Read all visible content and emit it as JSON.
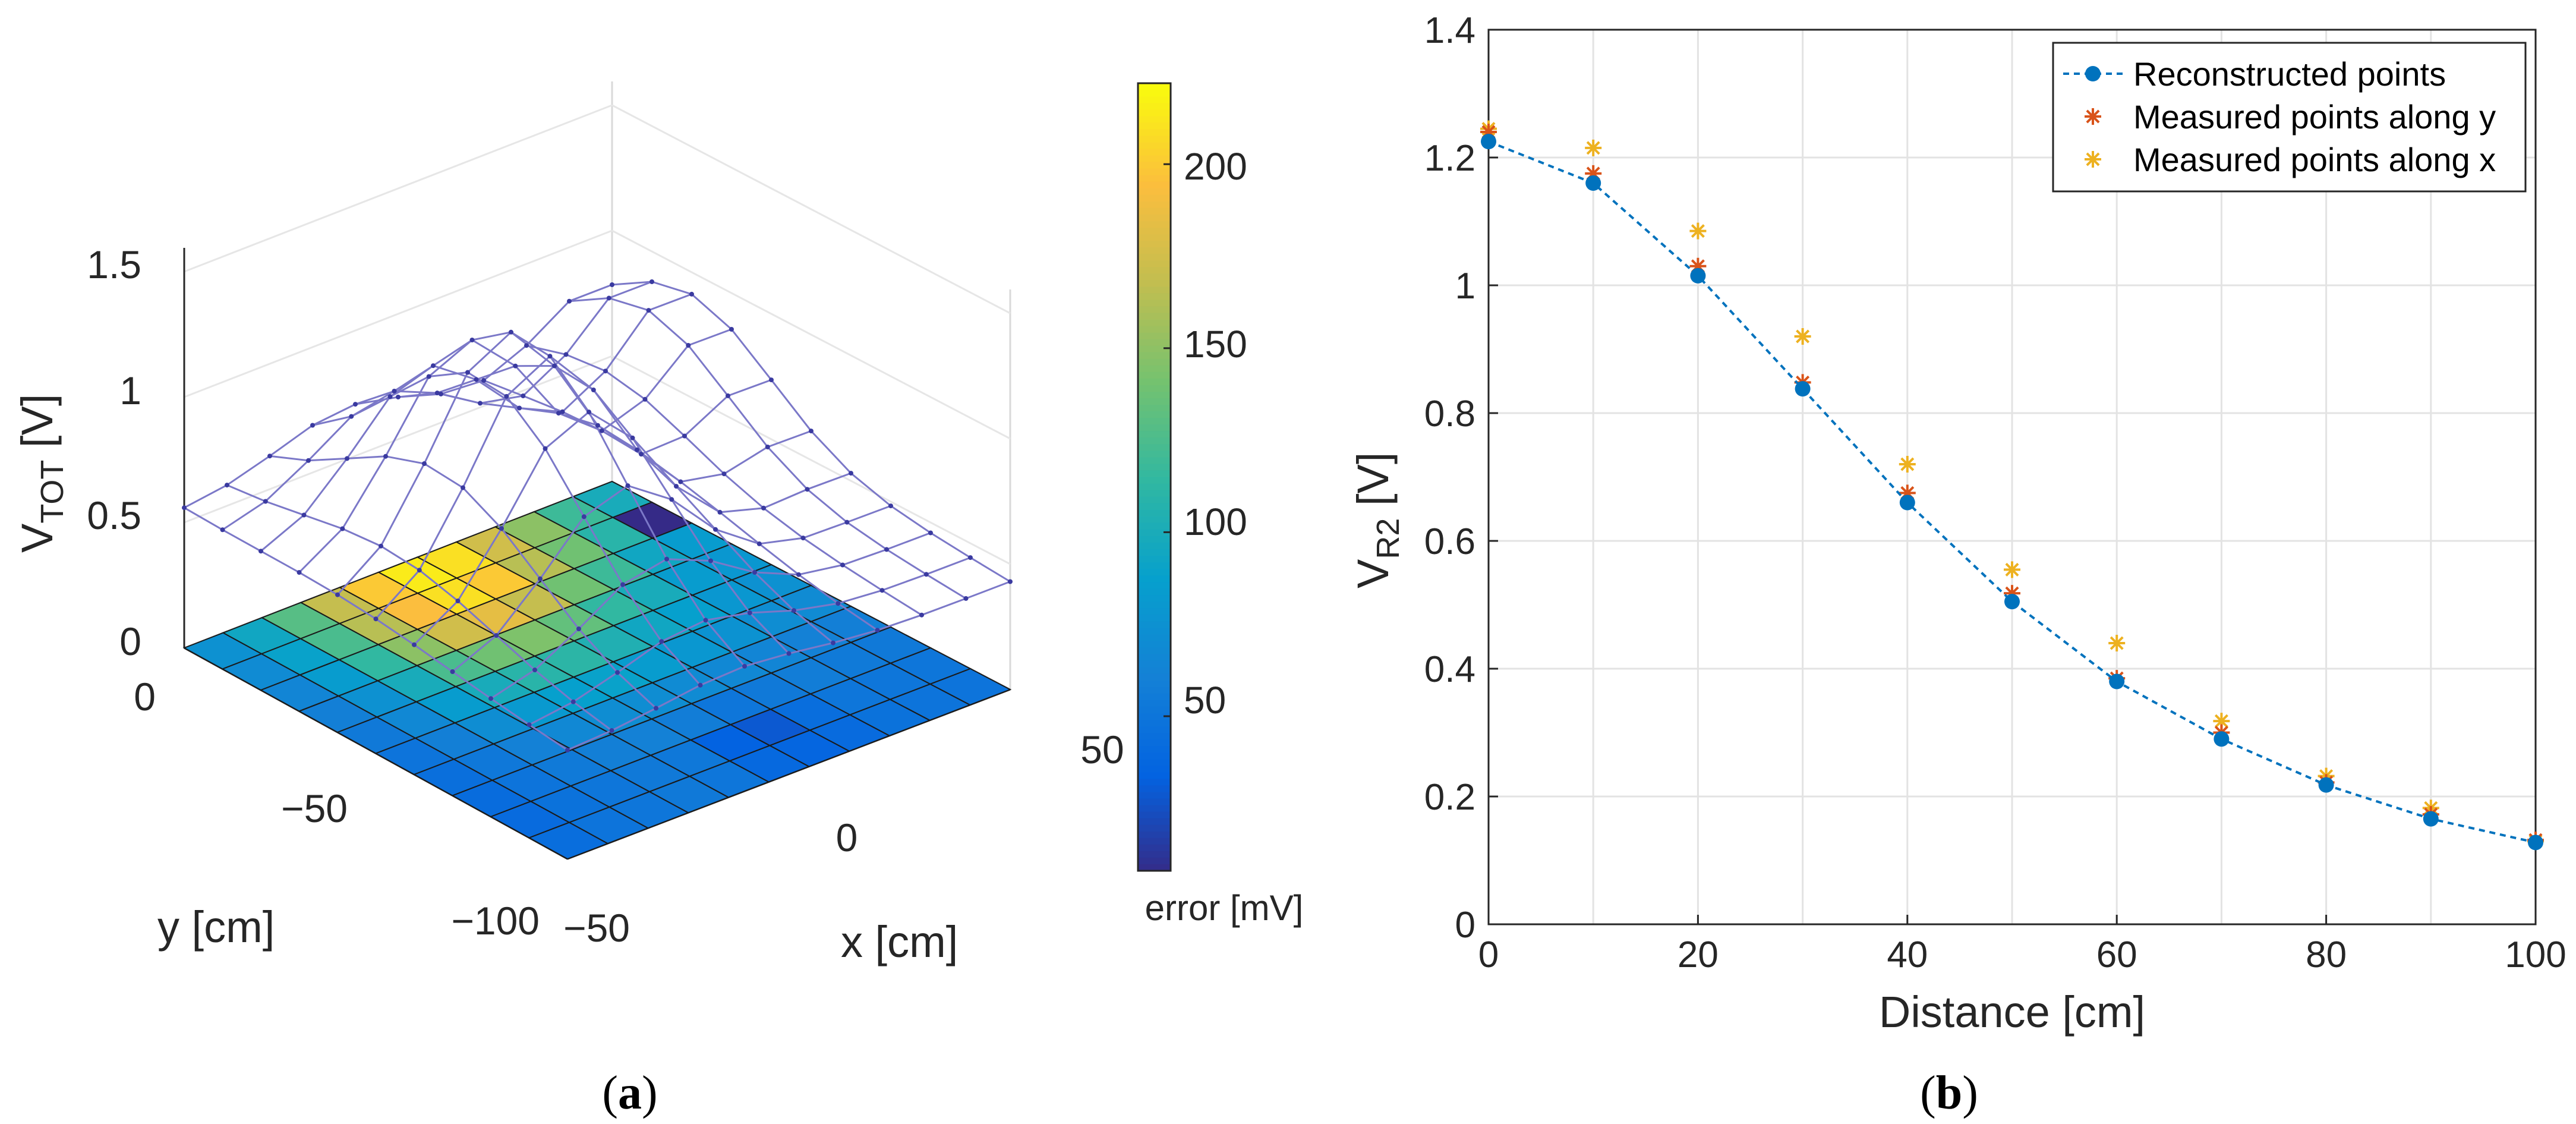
{
  "chart_data": [
    {
      "type": "surface",
      "panel_label": "(a)",
      "panel_label_parts": {
        "open": "(",
        "letter": "a",
        "close": ")"
      },
      "zlabel": {
        "main": "V",
        "sub": "TOT",
        "unit": " [V]"
      },
      "xlabel": "x [cm]",
      "ylabel": "y [cm]",
      "z_ticks": [
        "0",
        "0.5",
        "1",
        "1.5"
      ],
      "x_ticks": [
        "−50",
        "0",
        "50"
      ],
      "y_ticks": [
        "0",
        "−50",
        "−100"
      ],
      "colorbar": {
        "label": "error [mV]",
        "ticks": [
          "50",
          "100",
          "150",
          "200"
        ],
        "range": [
          8,
          222
        ],
        "colormap": "parula"
      },
      "mesh_color": "#7b78c8",
      "error_grid_mV": [
        [
          75,
          95,
          130,
          170,
          200,
          215,
          210,
          175,
          150,
          120,
          100
        ],
        [
          70,
          90,
          125,
          165,
          195,
          210,
          200,
          165,
          140,
          110,
          8
        ],
        [
          65,
          85,
          115,
          150,
          175,
          185,
          170,
          140,
          120,
          95,
          85
        ],
        [
          60,
          75,
          100,
          125,
          140,
          145,
          135,
          115,
          100,
          85,
          80
        ],
        [
          55,
          68,
          85,
          100,
          110,
          112,
          105,
          95,
          88,
          80,
          75
        ],
        [
          50,
          60,
          72,
          82,
          88,
          90,
          85,
          80,
          76,
          72,
          70
        ],
        [
          46,
          54,
          62,
          68,
          72,
          72,
          70,
          68,
          65,
          62,
          60
        ],
        [
          43,
          50,
          56,
          60,
          62,
          58,
          52,
          55,
          58,
          56,
          55
        ],
        [
          42,
          48,
          52,
          55,
          54,
          35,
          30,
          45,
          52,
          52,
          52
        ],
        [
          45,
          50,
          52,
          55,
          52,
          40,
          38,
          42,
          48,
          50,
          50
        ]
      ]
    },
    {
      "type": "line+scatter",
      "panel_label": "(b)",
      "panel_label_parts": {
        "open": "(",
        "letter": "b",
        "close": ")"
      },
      "xlabel": "Distance [cm]",
      "ylabel": {
        "main": "V",
        "sub": "R2",
        "unit": " [V]"
      },
      "xlim": [
        0,
        100
      ],
      "ylim": [
        0,
        1.4
      ],
      "x_ticks": [
        "0",
        "20",
        "40",
        "60",
        "80",
        "100"
      ],
      "y_ticks": [
        "0",
        "0.2",
        "0.4",
        "0.6",
        "0.8",
        "1",
        "1.2",
        "1.4"
      ],
      "grid": true,
      "legend_position": "top-right",
      "x": [
        0,
        10,
        20,
        30,
        40,
        50,
        60,
        70,
        80,
        90,
        100
      ],
      "series": [
        {
          "name": "Reconstructed points",
          "color": "#0072bd",
          "marker": "circle",
          "line": "dashed",
          "values": [
            1.225,
            1.16,
            1.015,
            0.838,
            0.66,
            0.505,
            0.38,
            0.29,
            0.218,
            0.165,
            0.128
          ]
        },
        {
          "name": "Measured points along y",
          "color": "#d95319",
          "marker": "asterisk",
          "values": [
            1.24,
            1.175,
            1.03,
            0.848,
            0.675,
            0.518,
            0.385,
            0.3,
            0.222,
            0.172,
            0.132
          ]
        },
        {
          "name": "Measured points along x",
          "color": "#edb120",
          "marker": "asterisk",
          "values": [
            1.245,
            1.215,
            1.085,
            0.92,
            0.72,
            0.555,
            0.44,
            0.318,
            0.232,
            0.182,
            0.13
          ]
        }
      ]
    }
  ]
}
